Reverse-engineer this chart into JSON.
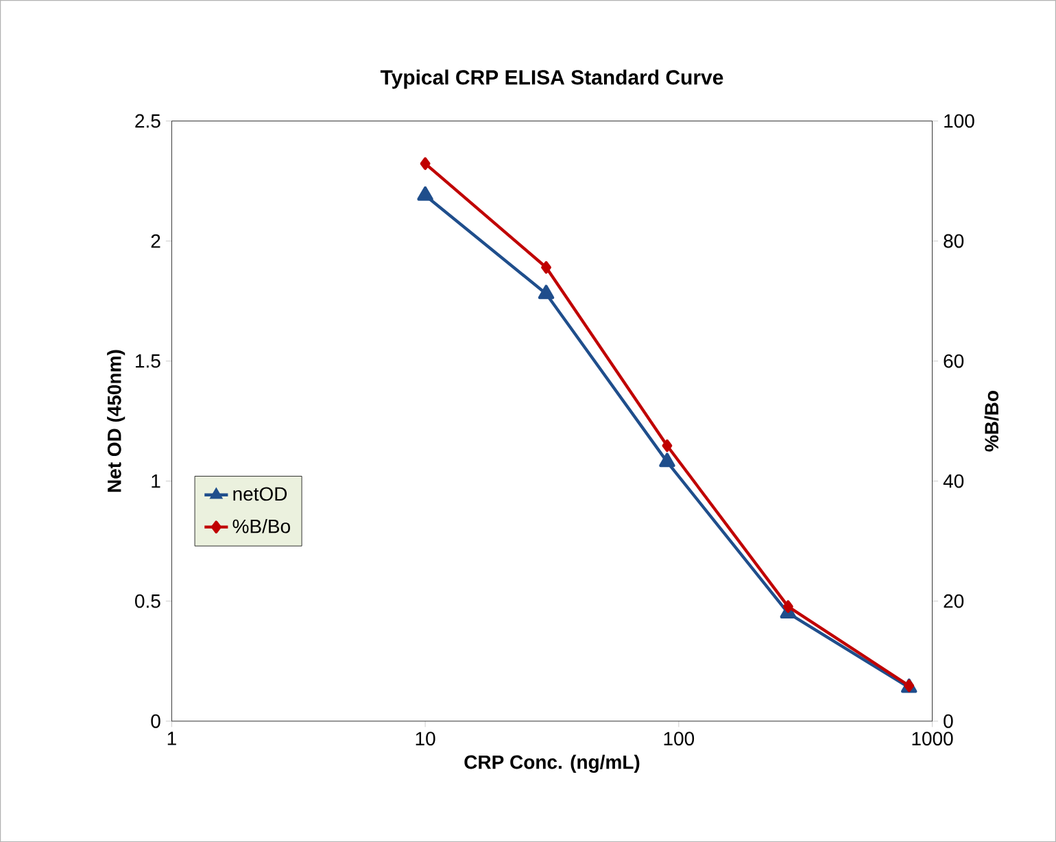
{
  "chart_data": {
    "type": "line",
    "title": "Typical CRP ELISA Standard Curve",
    "xlabel": "CRP Conc. (ng/mL)",
    "ylabel": "Net  OD (450nm)",
    "y2label": "%B/Bo",
    "x": [
      10,
      30,
      90,
      270,
      810
    ],
    "series": [
      {
        "name": "netOD",
        "color": "#1f4e8c",
        "values": [
          2.19,
          1.78,
          1.08,
          0.45,
          0.14
        ],
        "marker": "triangle"
      },
      {
        "name": "%B/Bo",
        "color": "#c00000",
        "values": [
          92.9,
          75.6,
          45.9,
          19.1,
          5.9
        ],
        "marker": "diamond",
        "axis": "y2"
      }
    ],
    "log": "x",
    "xlim": [
      1,
      1000
    ],
    "xticks": [
      1,
      10,
      100,
      1000
    ],
    "ylim": [
      0,
      2.5
    ],
    "yticks": [
      0,
      0.5,
      1,
      1.5,
      2,
      2.5
    ],
    "y2lim": [
      0,
      100
    ],
    "y2ticks": [
      0,
      20,
      40,
      60,
      80,
      100
    ],
    "grid": false,
    "legend": "left",
    "line_style": "solid"
  }
}
